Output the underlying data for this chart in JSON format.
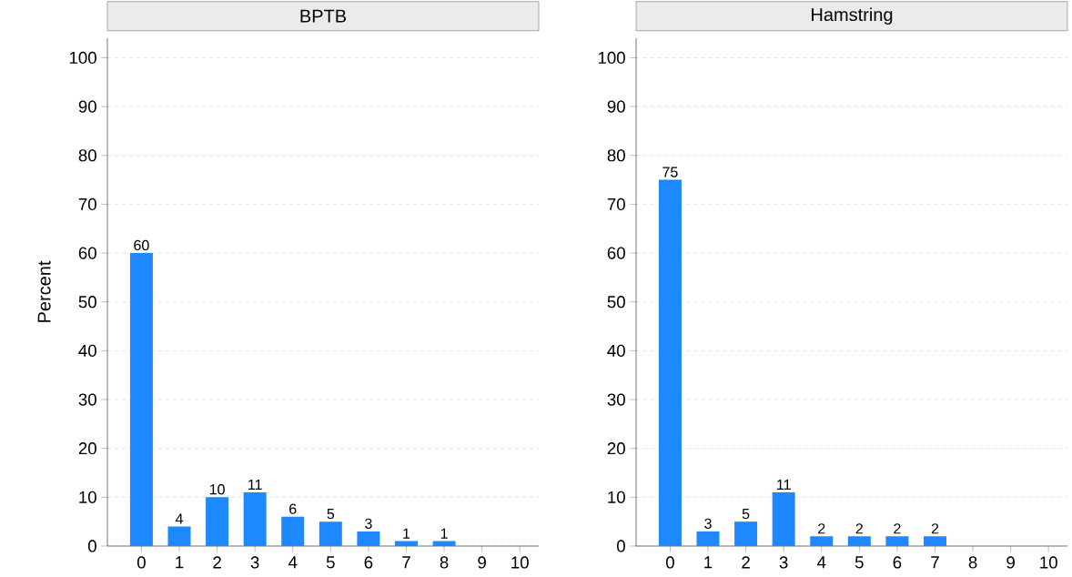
{
  "chart_data": [
    {
      "type": "bar",
      "title": "BPTB",
      "ylabel": "Percent",
      "categories": [
        "0",
        "1",
        "2",
        "3",
        "4",
        "5",
        "6",
        "7",
        "8",
        "9",
        "10"
      ],
      "values": [
        60,
        4,
        10,
        11,
        6,
        5,
        3,
        1,
        1,
        null,
        null
      ],
      "color": "#1e88ff",
      "data_labels": true,
      "ylim": [
        0,
        104
      ],
      "yticks": [
        0,
        10,
        20,
        30,
        40,
        50,
        60,
        70,
        80,
        90,
        100
      ],
      "grid": "y"
    },
    {
      "type": "bar",
      "title": "Hamstring",
      "categories": [
        "0",
        "1",
        "2",
        "3",
        "4",
        "5",
        "6",
        "7",
        "8",
        "9",
        "10"
      ],
      "values": [
        75,
        3,
        5,
        11,
        2,
        2,
        2,
        2,
        null,
        null,
        null
      ],
      "color": "#1e88ff",
      "data_labels": true,
      "ylim": [
        0,
        104
      ],
      "yticks": [
        0,
        10,
        20,
        30,
        40,
        50,
        60,
        70,
        80,
        90,
        100
      ],
      "grid": "y"
    }
  ]
}
